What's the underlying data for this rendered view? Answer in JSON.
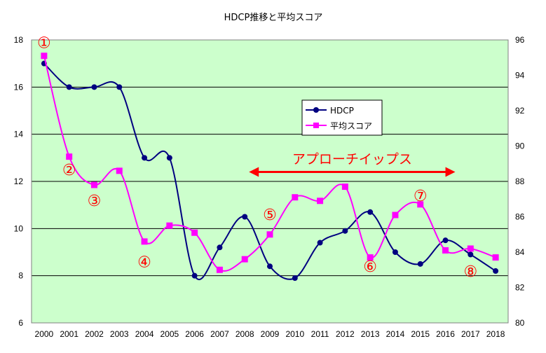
{
  "chart_data": {
    "type": "line",
    "title": "HDCP推移と平均スコア",
    "categories": [
      "2000",
      "2001",
      "2002",
      "2003",
      "2004",
      "2005",
      "2006",
      "2007",
      "2008",
      "2009",
      "2010",
      "2011",
      "2012",
      "2013",
      "2014",
      "2015",
      "2016",
      "2017",
      "2018"
    ],
    "series": [
      {
        "name": "HDCP",
        "axis": "left",
        "color": "#000080",
        "marker": "circle",
        "values": [
          17,
          16,
          16,
          16,
          13,
          13,
          8,
          9.2,
          10.5,
          8.4,
          7.9,
          9.4,
          9.9,
          10.7,
          9.0,
          8.5,
          9.5,
          8.9,
          8.2
        ]
      },
      {
        "name": "平均スコア",
        "axis": "right",
        "color": "#ff00ff",
        "marker": "square",
        "values": [
          95.1,
          89.4,
          87.8,
          88.6,
          84.6,
          85.5,
          85.1,
          83.0,
          83.6,
          85.0,
          87.1,
          86.9,
          87.7,
          83.7,
          86.1,
          86.7,
          84.1,
          84.2,
          83.7
        ]
      }
    ],
    "y_left": {
      "min": 6,
      "max": 18,
      "ticks": [
        6,
        8,
        10,
        12,
        14,
        16,
        18
      ]
    },
    "y_right": {
      "min": 80,
      "max": 96,
      "ticks": [
        80,
        82,
        84,
        86,
        88,
        90,
        92,
        94,
        96
      ]
    },
    "grid": true,
    "plot_bg": "#ccffcc",
    "legend": "top-center",
    "annotations": [
      {
        "text": "①",
        "x": "2000",
        "axis": "left",
        "y": 17.9
      },
      {
        "text": "②",
        "x": "2001",
        "axis": "left",
        "y": 12.5
      },
      {
        "text": "③",
        "x": "2002",
        "axis": "left",
        "y": 11.2
      },
      {
        "text": "④",
        "x": "2004",
        "axis": "left",
        "y": 8.6
      },
      {
        "text": "⑤",
        "x": "2009",
        "axis": "left",
        "y": 10.6
      },
      {
        "text": "⑥",
        "x": "2013",
        "axis": "left",
        "y": 8.4
      },
      {
        "text": "⑦",
        "x": "2015",
        "axis": "left",
        "y": 11.4
      },
      {
        "text": "⑧",
        "x": "2017",
        "axis": "left",
        "y": 8.2
      }
    ],
    "arrow": {
      "text": "アプローチイップス",
      "from": "2008",
      "to": "2016",
      "axis": "left",
      "y": 12.4,
      "color": "#ff0000"
    }
  }
}
